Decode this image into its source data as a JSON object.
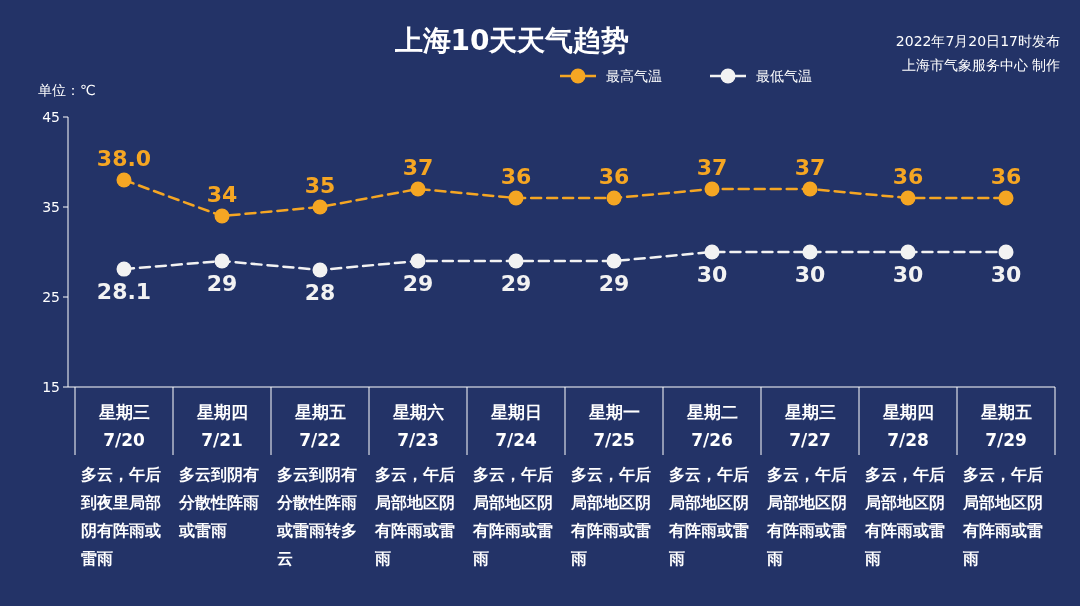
{
  "chart_data": {
    "type": "line",
    "title": "上海10天天气趋势",
    "ylabel": "单位：℃",
    "annotations": [
      "2022年7月20日17时发布",
      "上海市气象服务中心 制作"
    ],
    "categories": [
      "星期三\n7/20\n多云，午后到夜里局部阴有阵雨或雷雨",
      "星期四\n7/21\n多云到阴有分散性阵雨或雷雨",
      "星期五\n7/22\n多云到阴有分散性阵雨或雷雨转多云",
      "星期六\n7/23\n多云，午后局部地区阴有阵雨或雷雨",
      "星期日\n7/24\n多云，午后局部地区阴有阵雨或雷雨",
      "星期一\n7/25\n多云，午后局部地区阴有阵雨或雷雨",
      "星期二\n7/26\n多云，午后局部地区阴有阵雨或雷雨",
      "星期三\n7/27\n多云，午后局部地区阴有阵雨或雷雨",
      "星期四\n7/28\n多云，午后局部地区阴有阵雨或雷雨",
      "星期五\n7/29\n多云，午后局部地区阴有阵雨或雷雨"
    ],
    "series": [
      {
        "name": "最高气温",
        "color": "#f5a623",
        "values": [
          38.0,
          34,
          35,
          37,
          36,
          36,
          37,
          37,
          36,
          36
        ],
        "value_labels": [
          "38.0",
          "34",
          "35",
          "37",
          "36",
          "36",
          "37",
          "37",
          "36",
          "36"
        ]
      },
      {
        "name": "最低气温",
        "color": "#f2f2f2",
        "values": [
          28.1,
          29,
          28,
          29,
          29,
          29,
          30,
          30,
          30,
          30
        ],
        "value_labels": [
          "28.1",
          "29",
          "28",
          "29",
          "29",
          "29",
          "30",
          "30",
          "30",
          "30"
        ]
      }
    ],
    "ylim": [
      15,
      45
    ],
    "yticks": [
      15,
      25,
      35,
      45
    ],
    "grid": false,
    "legend": "top",
    "marker": "circle",
    "line_style": "dashed"
  }
}
